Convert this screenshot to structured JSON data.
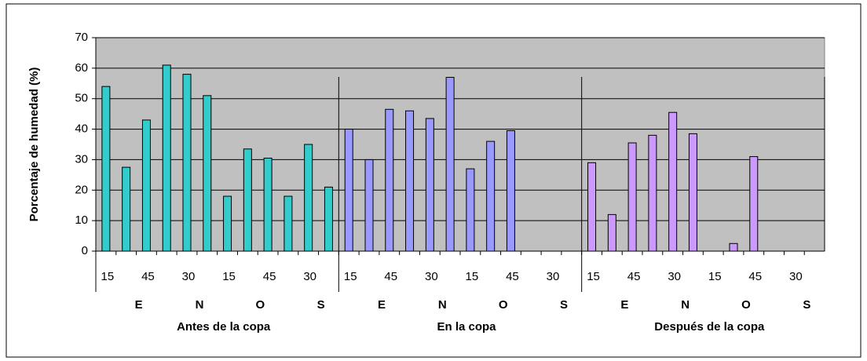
{
  "chart_data": {
    "type": "bar",
    "y_label": "Porcentaje de humedad (%)",
    "ylim": [
      0,
      70
    ],
    "yticks": [
      0,
      10,
      20,
      30,
      40,
      50,
      60,
      70
    ],
    "grid": true,
    "groups": [
      {
        "name": "Antes de la copa",
        "color": "#33cccc",
        "subgroups": [
          "E",
          "N",
          "O",
          "S"
        ],
        "categories": [
          "15",
          null,
          "45",
          null,
          "30",
          null,
          "15",
          null,
          "45",
          null,
          "30",
          null
        ],
        "values": [
          54,
          27.5,
          43,
          61,
          58,
          51,
          18,
          33.5,
          30.5,
          18,
          35,
          21
        ]
      },
      {
        "name": "En la copa",
        "color": "#9999ff",
        "subgroups": [
          "E",
          "N",
          "O",
          "S"
        ],
        "categories": [
          "15",
          null,
          "45",
          null,
          "30",
          null,
          "15",
          null,
          "45",
          null,
          "30",
          null
        ],
        "values": [
          40,
          30,
          46.5,
          46,
          43.5,
          57,
          27,
          36,
          39.5,
          null,
          null,
          null
        ]
      },
      {
        "name": "Después de la copa",
        "color": "#cc99ff",
        "subgroups": [
          "E",
          "N",
          "O",
          "S"
        ],
        "categories": [
          "15",
          null,
          "45",
          null,
          "30",
          null,
          "15",
          null,
          "45",
          null,
          "30",
          null
        ],
        "values": [
          29,
          12,
          35.5,
          38,
          45.5,
          38.5,
          null,
          2.5,
          31,
          null,
          null,
          null
        ]
      }
    ]
  }
}
